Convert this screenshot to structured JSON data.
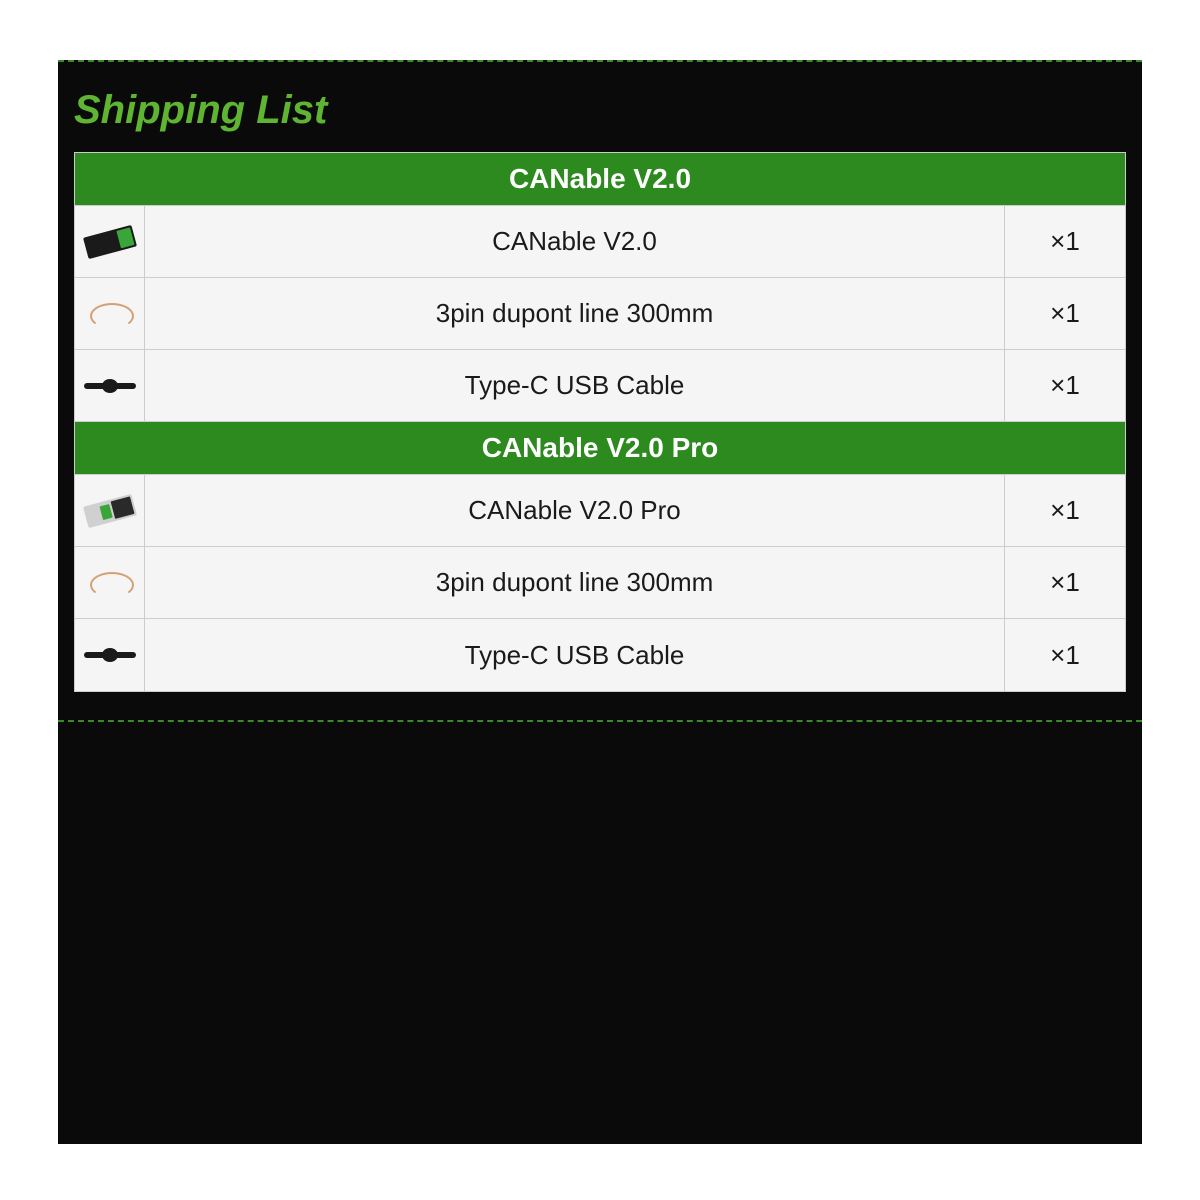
{
  "page": {
    "title": "Shipping List",
    "title_color": "#5fb531",
    "panel_bg": "#0a0a0a",
    "dash_color": "#3a8a2a",
    "row_bg": "#f5f5f5",
    "border_color": "#cccccc",
    "text_color": "#1a1a1a",
    "header_bg": "#2d8a1f",
    "header_text_color": "#ffffff"
  },
  "sections": [
    {
      "header": "CANable V2.0",
      "rows": [
        {
          "icon": "board-icon",
          "name": "CANable V2.0",
          "qty": "×1"
        },
        {
          "icon": "dupont-wire-icon",
          "name": "3pin dupont line 300mm",
          "qty": "×1"
        },
        {
          "icon": "usb-cable-icon",
          "name": "Type-C USB Cable",
          "qty": "×1"
        }
      ]
    },
    {
      "header": "CANable V2.0 Pro",
      "rows": [
        {
          "icon": "board-pro-icon",
          "name": "CANable V2.0 Pro",
          "qty": "×1"
        },
        {
          "icon": "dupont-wire-icon",
          "name": "3pin dupont line 300mm",
          "qty": "×1"
        },
        {
          "icon": "usb-cable-icon",
          "name": "Type-C USB Cable",
          "qty": "×1"
        }
      ]
    }
  ]
}
